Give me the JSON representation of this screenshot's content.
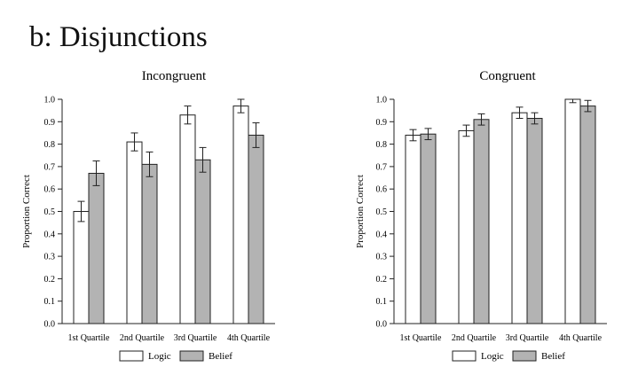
{
  "figure": {
    "title": "b: Disjunctions"
  },
  "colors": {
    "logic": "#ffffff",
    "belief": "#b3b3b3",
    "stroke": "#222222"
  },
  "chart_data": [
    {
      "type": "bar",
      "title": "Incongruent",
      "ylabel": "Proportion Correct",
      "xlabel": "",
      "ylim": [
        0,
        1.0
      ],
      "yticks": [
        "0.0",
        "0.1",
        "0.2",
        "0.3",
        "0.4",
        "0.5",
        "0.6",
        "0.7",
        "0.8",
        "0.9",
        "1.0"
      ],
      "categories": [
        "1st Quartile",
        "2nd Quartile",
        "3rd Quartile",
        "4th Quartile"
      ],
      "series": [
        {
          "name": "Logic",
          "values": [
            0.5,
            0.81,
            0.93,
            0.97
          ],
          "errors": [
            0.045,
            0.04,
            0.04,
            0.03
          ]
        },
        {
          "name": "Belief",
          "values": [
            0.67,
            0.71,
            0.73,
            0.84
          ],
          "errors": [
            0.055,
            0.055,
            0.055,
            0.055
          ]
        }
      ],
      "legend": "bottom",
      "grid": false
    },
    {
      "type": "bar",
      "title": "Congruent",
      "ylabel": "Proportion Correct",
      "xlabel": "",
      "ylim": [
        0,
        1.0
      ],
      "yticks": [
        "0.0",
        "0.1",
        "0.2",
        "0.3",
        "0.4",
        "0.5",
        "0.6",
        "0.7",
        "0.8",
        "0.9",
        "1.0"
      ],
      "categories": [
        "1st Quartile",
        "2nd Quartile",
        "3rd Quartile",
        "4th Quartile"
      ],
      "series": [
        {
          "name": "Logic",
          "values": [
            0.84,
            0.86,
            0.94,
            1.0
          ],
          "errors": [
            0.025,
            0.025,
            0.025,
            0.015
          ]
        },
        {
          "name": "Belief",
          "values": [
            0.845,
            0.91,
            0.915,
            0.97
          ],
          "errors": [
            0.025,
            0.025,
            0.025,
            0.025
          ]
        }
      ],
      "legend": "bottom",
      "grid": false
    }
  ]
}
